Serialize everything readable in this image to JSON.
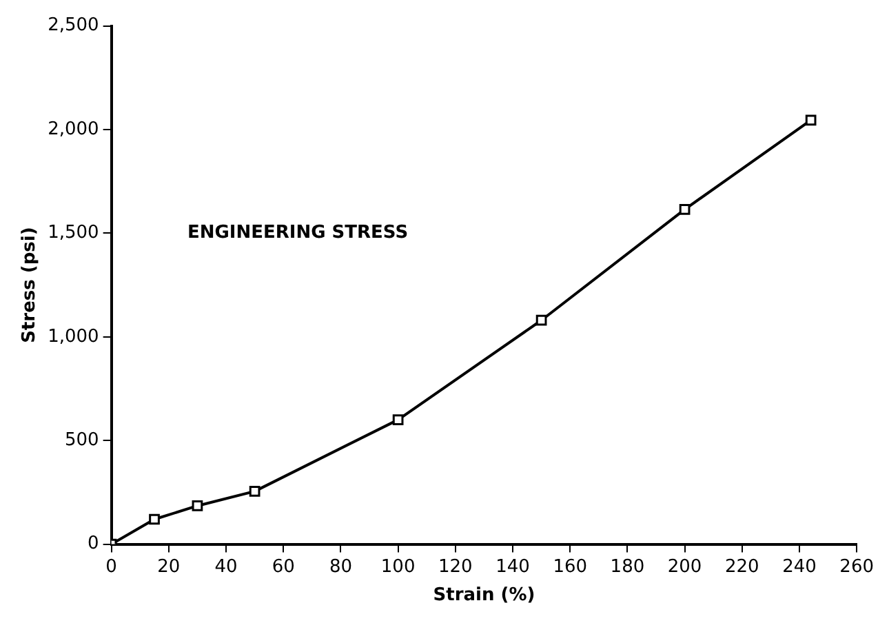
{
  "chart_data": {
    "type": "line",
    "xlabel": "Strain (%)",
    "ylabel": "Stress (psi)",
    "annotations": [
      "ENGINEERING STRESS"
    ],
    "x": [
      0,
      15,
      30,
      50,
      100,
      150,
      200,
      244
    ],
    "series": [
      {
        "color": "#000000",
        "values": [
          0,
          120,
          185,
          255,
          600,
          1080,
          1615,
          2045
        ]
      }
    ],
    "xlim": [
      0,
      260
    ],
    "xticks": [
      0,
      20,
      40,
      60,
      80,
      100,
      120,
      140,
      160,
      180,
      200,
      220,
      240,
      260
    ],
    "ylim": [
      0,
      2500
    ],
    "yticks": [
      0,
      500,
      {
        "value": 1000,
        "label": "1,000"
      },
      {
        "value": 1500,
        "label": "1,500"
      },
      {
        "value": 2000,
        "label": "2,000"
      },
      {
        "value": 2500,
        "label": "2,500"
      }
    ],
    "marker": "square",
    "line_style": "solid",
    "legend": false
  }
}
